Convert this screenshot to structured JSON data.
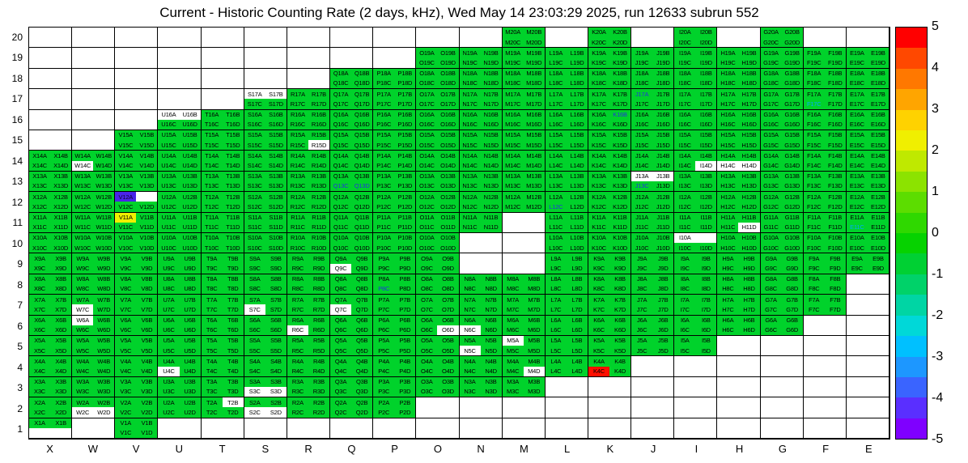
{
  "title": "Current - Historic Counting Rate (2 days, kHz), Wed May 14 23:03:29 2025, run 12633 subrun 552",
  "axes": {
    "x_labels": [
      "X",
      "W",
      "V",
      "U",
      "T",
      "S",
      "R",
      "Q",
      "P",
      "O",
      "N",
      "M",
      "L",
      "K",
      "J",
      "I",
      "H",
      "G",
      "F",
      "E"
    ],
    "y_labels_top_to_bottom": [
      "20",
      "19",
      "18",
      "17",
      "16",
      "15",
      "14",
      "13",
      "12",
      "11",
      "10",
      "9",
      "8",
      "7",
      "6",
      "5",
      "4",
      "3",
      "2",
      "1"
    ]
  },
  "colors": {
    "cell_green": "#00d22b",
    "white": "#ffffff",
    "blue_text": "#2233dd",
    "cyan_text": "#00aaff",
    "grid_line": "#000000",
    "overrides": {
      "V12A": "#4a25e8",
      "V11A": "#f0ef00",
      "K4C": "#ff0f00"
    }
  },
  "colorbar": {
    "tick_labels_top_to_bottom": [
      "5",
      "4",
      "3",
      "2",
      "1",
      "0",
      "-1",
      "-2",
      "-3",
      "-4",
      "-5"
    ],
    "bands_bottom_to_top": [
      "#7f00ff",
      "#5a2fff",
      "#3a64ff",
      "#1d97ff",
      "#00c0ff",
      "#00d8d8",
      "#00d5a4",
      "#00d269",
      "#00d033",
      "#06d200",
      "#2fd800",
      "#5cdd00",
      "#8ce300",
      "#bfe900",
      "#f0ef00",
      "#ffd200",
      "#ffa500",
      "#ff7800",
      "#ff4800",
      "#ff0000"
    ]
  },
  "chart_data": {
    "type": "heatmap",
    "title": "Current - Historic Counting Rate (2 days, kHz), Wed May 14 23:03:29 2025, run 12633 subrun 552",
    "units": "kHz",
    "value_range": [
      -5,
      5
    ],
    "x_categories": [
      "X",
      "W",
      "V",
      "U",
      "T",
      "S",
      "R",
      "Q",
      "P",
      "O",
      "N",
      "M",
      "L",
      "K",
      "J",
      "I",
      "H",
      "G",
      "F",
      "E"
    ],
    "y_categories_bottom_to_top": [
      "1",
      "2",
      "3",
      "4",
      "5",
      "6",
      "7",
      "8",
      "9",
      "10",
      "11",
      "12",
      "13",
      "14",
      "15",
      "16",
      "17",
      "18",
      "19",
      "20"
    ],
    "subcell_letters": [
      "A",
      "B",
      "C",
      "D"
    ],
    "typical_green_value": 0.5,
    "special_values": {
      "V12A": -4.5,
      "V11A": 1.8,
      "K4C": 5.0
    },
    "present_columns_by_row": {
      "20": [
        "M",
        "K",
        "I",
        "G"
      ],
      "19": [
        "O",
        "N",
        "M",
        "L",
        "K",
        "J",
        "I",
        "H",
        "G",
        "F",
        "E"
      ],
      "18": [
        "Q",
        "P",
        "O",
        "N",
        "M",
        "L",
        "K",
        "J",
        "I",
        "H",
        "G",
        "F",
        "E"
      ],
      "17": [
        "S",
        "R",
        "Q",
        "P",
        "O",
        "N",
        "M",
        "L",
        "K",
        "J",
        "I",
        "H",
        "G",
        "F",
        "E"
      ],
      "16": [
        "U",
        "T",
        "S",
        "R",
        "Q",
        "P",
        "O",
        "N",
        "M",
        "L",
        "K",
        "J",
        "I",
        "H",
        "G",
        "F",
        "E"
      ],
      "15": [
        "V",
        "U",
        "T",
        "S",
        "R",
        "Q",
        "P",
        "O",
        "N",
        "M",
        "L",
        "K",
        "J",
        "I",
        "H",
        "G",
        "F",
        "E"
      ],
      "14": [
        "X",
        "W",
        "V",
        "U",
        "T",
        "S",
        "R",
        "Q",
        "P",
        "O",
        "N",
        "M",
        "L",
        "K",
        "J",
        "I",
        "H",
        "G",
        "F",
        "E"
      ],
      "13": [
        "X",
        "W",
        "V",
        "U",
        "T",
        "S",
        "R",
        "Q",
        "P",
        "O",
        "N",
        "M",
        "L",
        "K",
        "J",
        "I",
        "H",
        "G",
        "F",
        "E"
      ],
      "12": [
        "X",
        "W",
        "V",
        "U",
        "T",
        "S",
        "R",
        "Q",
        "P",
        "O",
        "N",
        "M",
        "L",
        "K",
        "J",
        "I",
        "H",
        "G",
        "F",
        "E"
      ],
      "11": [
        "X",
        "W",
        "V",
        "U",
        "T",
        "S",
        "R",
        "Q",
        "P",
        "O",
        "N",
        "L",
        "K",
        "J",
        "I",
        "H",
        "G",
        "F",
        "E"
      ],
      "10": [
        "X",
        "W",
        "V",
        "U",
        "T",
        "S",
        "R",
        "Q",
        "P",
        "O",
        "L",
        "K",
        "J",
        "I",
        "H",
        "G",
        "F",
        "E"
      ],
      "9": [
        "X",
        "W",
        "V",
        "U",
        "T",
        "S",
        "R",
        "Q",
        "P",
        "O",
        "L",
        "K",
        "J",
        "I",
        "H",
        "G",
        "F",
        "E"
      ],
      "8": [
        "X",
        "W",
        "V",
        "U",
        "T",
        "S",
        "R",
        "Q",
        "P",
        "O",
        "N",
        "M",
        "L",
        "K",
        "J",
        "I",
        "H",
        "G",
        "F"
      ],
      "7": [
        "X",
        "W",
        "V",
        "U",
        "T",
        "S",
        "R",
        "Q",
        "P",
        "O",
        "N",
        "M",
        "L",
        "K",
        "J",
        "I",
        "H",
        "G",
        "F"
      ],
      "6": [
        "X",
        "W",
        "V",
        "U",
        "T",
        "S",
        "R",
        "Q",
        "P",
        "O",
        "N",
        "M",
        "L",
        "K",
        "J",
        "I",
        "H",
        "G"
      ],
      "5": [
        "X",
        "W",
        "V",
        "U",
        "T",
        "S",
        "R",
        "Q",
        "P",
        "O",
        "N",
        "M",
        "L",
        "K",
        "J",
        "I"
      ],
      "4": [
        "X",
        "W",
        "V",
        "U",
        "T",
        "S",
        "R",
        "Q",
        "P",
        "O",
        "N",
        "M",
        "L",
        "K"
      ],
      "3": [
        "X",
        "W",
        "V",
        "U",
        "T",
        "S",
        "R",
        "Q",
        "P",
        "O",
        "N",
        "M"
      ],
      "2": [
        "X",
        "W",
        "V",
        "U",
        "T",
        "S",
        "R",
        "Q",
        "P"
      ],
      "1": [
        "X",
        "V"
      ]
    },
    "zero_white_subcells": [
      "U16A",
      "U16B",
      "S17A",
      "S17B",
      "R15D",
      "W14C",
      "I14D",
      "H14C",
      "H14D",
      "J13A",
      "J13B",
      "I10A",
      "H11D",
      "Q9C",
      "W7C",
      "S7C",
      "Q7C",
      "W6A",
      "R6C",
      "O6D",
      "N6C",
      "N5C",
      "M5A",
      "U4C",
      "M4D",
      "T2B",
      "W2C",
      "W2D",
      "S3C",
      "S3D",
      "S2C",
      "S2D"
    ],
    "missing_subcells": [
      "X1C",
      "X1D",
      "I10B",
      "V12B"
    ],
    "blue_text_subcells": [
      "J17A",
      "K16B",
      "Q13C",
      "Q13D",
      "J13C",
      "L12C",
      "P8C"
    ],
    "cyan_text_subcells": [
      "E11C",
      "F17C"
    ]
  }
}
